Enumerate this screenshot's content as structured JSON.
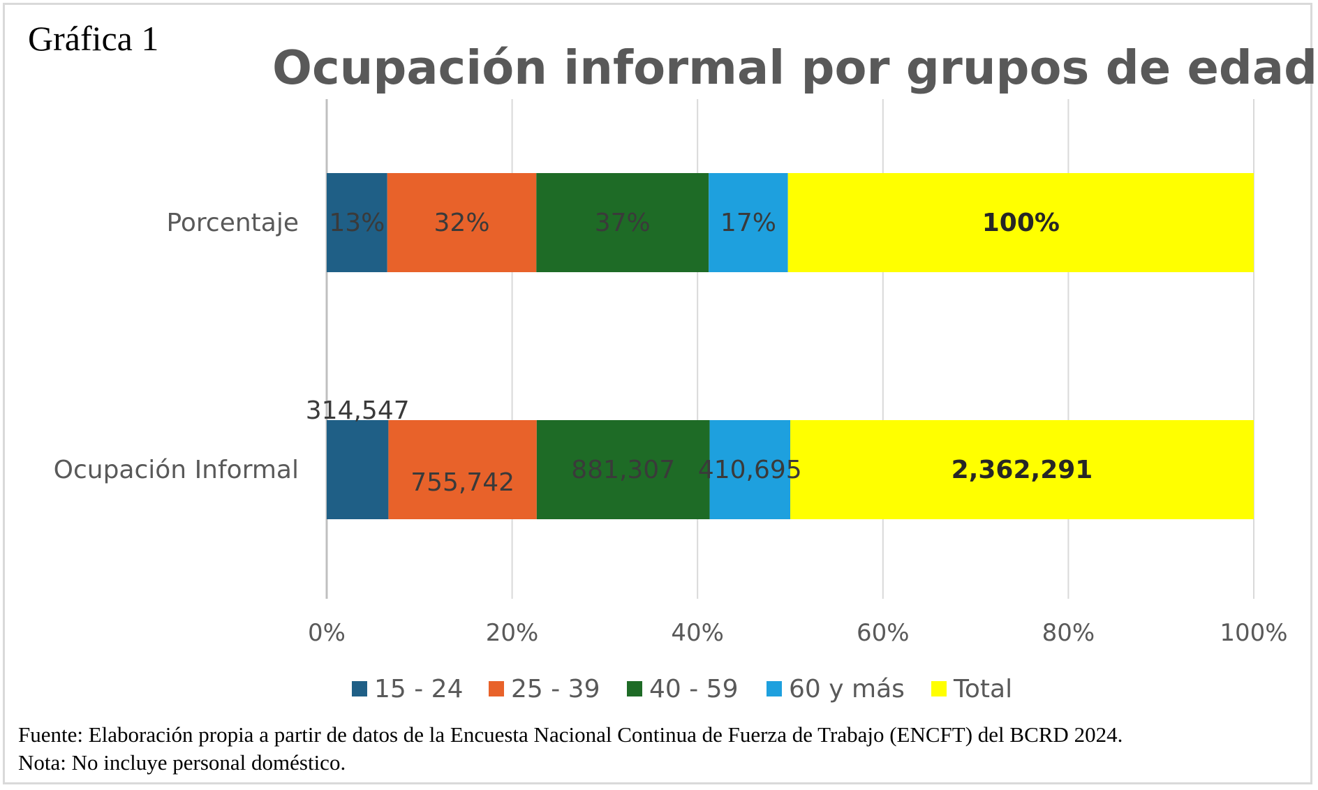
{
  "figure_label": "Gráfica 1",
  "footer": {
    "source": "Fuente: Elaboración propia a partir de datos de la Encuesta Nacional Continua de Fuerza de Trabajo (ENCFT) del BCRD 2024.",
    "note": "Nota: No incluye personal doméstico."
  },
  "chart_data": {
    "type": "bar",
    "orientation": "horizontal",
    "stacked": "percent",
    "title": "Ocupación informal por grupos de edad",
    "categories": [
      "Porcentaje",
      "Ocupación Informal"
    ],
    "series": [
      {
        "name": "15 - 24",
        "color": "#1f5f86",
        "values": [
          13,
          314547
        ],
        "labels": [
          "13%",
          "314,547"
        ]
      },
      {
        "name": "25 - 39",
        "color": "#e8622a",
        "values": [
          32,
          755742
        ],
        "labels": [
          "32%",
          "755,742"
        ]
      },
      {
        "name": "40 - 59",
        "color": "#1e6b26",
        "values": [
          37,
          881307
        ],
        "labels": [
          "37%",
          "881,307"
        ]
      },
      {
        "name": "60 y más",
        "color": "#1ea0de",
        "values": [
          17,
          410695
        ],
        "labels": [
          "17%",
          "410,695"
        ]
      },
      {
        "name": "Total",
        "color": "#ffff00",
        "values": [
          100,
          2362291
        ],
        "labels": [
          "100%",
          "2,362,291"
        ]
      }
    ],
    "xaxis": {
      "min": 0,
      "max": 100,
      "ticks": [
        "0%",
        "20%",
        "40%",
        "60%",
        "80%",
        "100%"
      ]
    },
    "grid": true,
    "legend_position": "bottom"
  }
}
